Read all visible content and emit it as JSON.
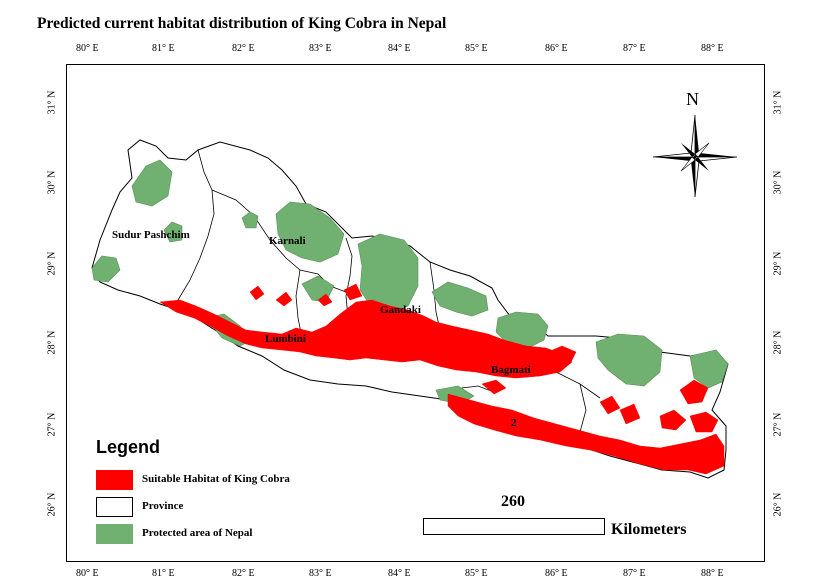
{
  "title": "Predicted current habitat distribution of King Cobra in Nepal",
  "longitude_ticks": [
    "80° E",
    "81° E",
    "82° E",
    "83° E",
    "84° E",
    "85° E",
    "86° E",
    "87° E",
    "88° E"
  ],
  "latitude_ticks": [
    "31° N",
    "30° N",
    "29° N",
    "28° N",
    "27° N",
    "26° N"
  ],
  "provinces": [
    "Sudur Pashchim",
    "Karnali",
    "Gandaki",
    "Lumbini",
    "Bagmati",
    "2"
  ],
  "north_arrow": {
    "label": "N",
    "icon": "compass-rose-icon"
  },
  "legend": {
    "title": "Legend",
    "items": [
      {
        "label": "Suitable Habitat of King Cobra",
        "color": "#ff0000"
      },
      {
        "label": "Province",
        "color": "#ffffff"
      },
      {
        "label": "Protected area of Nepal",
        "color": "#70b070"
      }
    ]
  },
  "scale_bar": {
    "value": "260",
    "unit": "Kilometers"
  },
  "colors": {
    "habitat": "#ff0000",
    "protected": "#70b070",
    "province_fill": "#ffffff",
    "border": "#000000"
  }
}
